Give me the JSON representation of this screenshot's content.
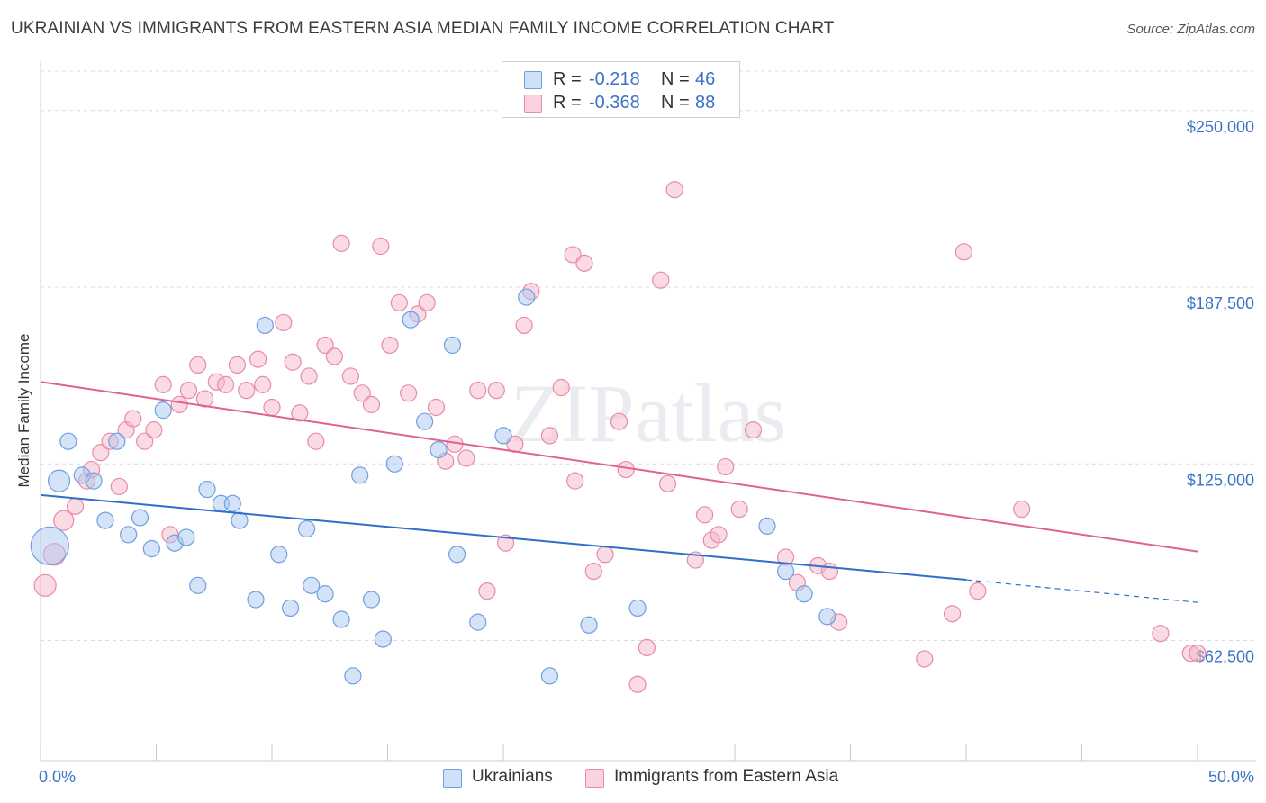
{
  "title": "UKRAINIAN VS IMMIGRANTS FROM EASTERN ASIA MEDIAN FAMILY INCOME CORRELATION CHART",
  "source": "Source: ZipAtlas.com",
  "watermark": "ZIPatlas",
  "legend": {
    "r_label": "R =",
    "n_label": "N =",
    "rows": [
      {
        "r": "-0.218",
        "n": "46",
        "color": "#a9c8f0"
      },
      {
        "r": "-0.368",
        "n": "88",
        "color": "#f5b5c8"
      }
    ]
  },
  "bottom_legend": [
    "Ukrainians",
    "Immigrants from Eastern Asia"
  ],
  "chart_data": {
    "type": "scatter",
    "ylabel": "Median Family Income",
    "xlim": [
      0,
      50
    ],
    "ylim": [
      20000,
      270000
    ],
    "x_tick_labels": [
      "0.0%",
      "50.0%"
    ],
    "y_ticks": [
      62500,
      125000,
      187500,
      250000
    ],
    "y_tick_labels": [
      "$62,500",
      "$125,000",
      "$187,500",
      "$250,000"
    ],
    "grid": "dashed horizontal",
    "colors": {
      "ukrainians_fill": "#a9c8f0",
      "ukrainians_stroke": "#6e9fe0",
      "ukrainians_line": "#2e6fce",
      "eastern_asia_fill": "#f5b5c8",
      "eastern_asia_stroke": "#e98aa8",
      "eastern_asia_line": "#e0628d",
      "axis_label": "#3a73c6"
    },
    "series": [
      {
        "name": "Ukrainians",
        "trend": {
          "x0": 0,
          "y0": 114000,
          "x1": 40,
          "y1": 84000,
          "dash_x1": 50,
          "dash_y1": 76000
        },
        "points": [
          [
            0.4,
            96000,
            22
          ],
          [
            0.8,
            119000,
            13
          ],
          [
            1.2,
            133000,
            10
          ],
          [
            1.8,
            121000,
            10
          ],
          [
            2.3,
            119000,
            10
          ],
          [
            2.8,
            105000,
            10
          ],
          [
            3.3,
            133000,
            10
          ],
          [
            3.8,
            100000,
            10
          ],
          [
            4.3,
            106000,
            10
          ],
          [
            4.8,
            95000,
            10
          ],
          [
            5.3,
            144000,
            10
          ],
          [
            5.8,
            97000,
            10
          ],
          [
            6.3,
            99000,
            10
          ],
          [
            6.8,
            82000,
            10
          ],
          [
            7.2,
            116000,
            10
          ],
          [
            7.8,
            111000,
            10
          ],
          [
            8.3,
            111000,
            10
          ],
          [
            8.6,
            105000,
            10
          ],
          [
            9.3,
            77000,
            10
          ],
          [
            9.7,
            174000,
            10
          ],
          [
            10.3,
            93000,
            10
          ],
          [
            10.8,
            74000,
            10
          ],
          [
            11.5,
            102000,
            10
          ],
          [
            11.7,
            82000,
            10
          ],
          [
            12.3,
            79000,
            10
          ],
          [
            13.0,
            70000,
            10
          ],
          [
            13.5,
            50000,
            10
          ],
          [
            13.8,
            121000,
            10
          ],
          [
            14.3,
            77000,
            10
          ],
          [
            14.8,
            63000,
            10
          ],
          [
            15.3,
            125000,
            10
          ],
          [
            16.0,
            176000,
            10
          ],
          [
            16.6,
            140000,
            10
          ],
          [
            17.2,
            130000,
            10
          ],
          [
            17.8,
            167000,
            10
          ],
          [
            18.0,
            93000,
            10
          ],
          [
            18.9,
            69000,
            10
          ],
          [
            20.0,
            135000,
            10
          ],
          [
            21.0,
            184000,
            10
          ],
          [
            22.0,
            50000,
            10
          ],
          [
            23.7,
            68000,
            10
          ],
          [
            25.8,
            74000,
            10
          ],
          [
            31.4,
            103000,
            10
          ],
          [
            32.2,
            87000,
            10
          ],
          [
            33.0,
            79000,
            10
          ],
          [
            34.0,
            71000,
            10
          ]
        ]
      },
      {
        "name": "Immigrants from Eastern Asia",
        "trend": {
          "x0": 0,
          "y0": 154000,
          "x1": 50,
          "y1": 94000
        },
        "points": [
          [
            0.2,
            82000,
            13
          ],
          [
            0.6,
            93000,
            13
          ],
          [
            1.0,
            105000,
            12
          ],
          [
            1.5,
            110000,
            10
          ],
          [
            2.0,
            119000,
            10
          ],
          [
            2.2,
            123000,
            10
          ],
          [
            2.6,
            129000,
            10
          ],
          [
            3.0,
            133000,
            10
          ],
          [
            3.4,
            117000,
            10
          ],
          [
            3.7,
            137000,
            10
          ],
          [
            4.0,
            141000,
            10
          ],
          [
            4.5,
            133000,
            10
          ],
          [
            4.9,
            137000,
            10
          ],
          [
            5.3,
            153000,
            10
          ],
          [
            5.6,
            100000,
            10
          ],
          [
            6.0,
            146000,
            10
          ],
          [
            6.4,
            151000,
            10
          ],
          [
            6.8,
            160000,
            10
          ],
          [
            7.1,
            148000,
            10
          ],
          [
            7.6,
            154000,
            10
          ],
          [
            8.0,
            153000,
            10
          ],
          [
            8.5,
            160000,
            10
          ],
          [
            8.9,
            151000,
            10
          ],
          [
            9.4,
            162000,
            10
          ],
          [
            9.6,
            153000,
            10
          ],
          [
            10.0,
            145000,
            10
          ],
          [
            10.5,
            175000,
            10
          ],
          [
            10.9,
            161000,
            10
          ],
          [
            11.2,
            143000,
            10
          ],
          [
            11.6,
            156000,
            10
          ],
          [
            11.9,
            133000,
            10
          ],
          [
            12.3,
            167000,
            10
          ],
          [
            12.7,
            163000,
            10
          ],
          [
            13.0,
            203000,
            10
          ],
          [
            13.4,
            156000,
            10
          ],
          [
            13.9,
            150000,
            10
          ],
          [
            14.3,
            146000,
            10
          ],
          [
            14.7,
            202000,
            10
          ],
          [
            15.1,
            167000,
            10
          ],
          [
            15.5,
            182000,
            10
          ],
          [
            15.9,
            150000,
            10
          ],
          [
            16.3,
            178000,
            10
          ],
          [
            16.7,
            182000,
            10
          ],
          [
            17.1,
            145000,
            10
          ],
          [
            17.5,
            126000,
            10
          ],
          [
            17.9,
            132000,
            10
          ],
          [
            18.4,
            127000,
            10
          ],
          [
            18.9,
            151000,
            10
          ],
          [
            19.3,
            80000,
            10
          ],
          [
            19.7,
            151000,
            10
          ],
          [
            20.1,
            97000,
            10
          ],
          [
            20.5,
            132000,
            10
          ],
          [
            20.9,
            174000,
            10
          ],
          [
            21.2,
            186000,
            10
          ],
          [
            22.0,
            135000,
            10
          ],
          [
            22.5,
            152000,
            10
          ],
          [
            23.0,
            199000,
            10
          ],
          [
            23.1,
            119000,
            10
          ],
          [
            23.5,
            196000,
            10
          ],
          [
            23.9,
            87000,
            10
          ],
          [
            24.4,
            93000,
            10
          ],
          [
            25.0,
            140000,
            10
          ],
          [
            25.3,
            123000,
            10
          ],
          [
            25.8,
            47000,
            10
          ],
          [
            26.2,
            60000,
            10
          ],
          [
            26.8,
            190000,
            10
          ],
          [
            27.1,
            118000,
            10
          ],
          [
            27.4,
            222000,
            10
          ],
          [
            28.3,
            91000,
            10
          ],
          [
            28.7,
            107000,
            10
          ],
          [
            29.0,
            98000,
            10
          ],
          [
            29.3,
            100000,
            10
          ],
          [
            29.6,
            124000,
            10
          ],
          [
            30.2,
            109000,
            10
          ],
          [
            30.8,
            137000,
            10
          ],
          [
            32.2,
            92000,
            10
          ],
          [
            32.7,
            83000,
            10
          ],
          [
            33.6,
            89000,
            10
          ],
          [
            34.1,
            87000,
            10
          ],
          [
            34.5,
            69000,
            10
          ],
          [
            38.2,
            56000,
            10
          ],
          [
            39.4,
            72000,
            10
          ],
          [
            39.9,
            200000,
            10
          ],
          [
            40.5,
            80000,
            10
          ],
          [
            42.4,
            109000,
            10
          ],
          [
            48.4,
            65000,
            10
          ],
          [
            49.7,
            58000,
            10
          ],
          [
            50.0,
            58000,
            10
          ]
        ]
      }
    ]
  }
}
